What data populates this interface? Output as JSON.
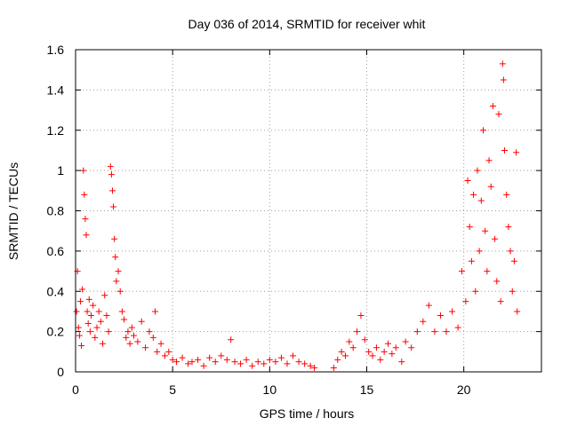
{
  "chart_data": {
    "type": "scatter",
    "title": "Day 036 of 2014, SRMTID for receiver whit",
    "xlabel": "GPS time / hours",
    "ylabel": "SRMTID / TECUs",
    "xlim": [
      0,
      24
    ],
    "ylim": [
      0,
      1.6
    ],
    "x_ticks": [
      0,
      5,
      10,
      15,
      20
    ],
    "x_tick_labels": [
      "0",
      "5",
      "10",
      "15",
      "20"
    ],
    "y_ticks": [
      0,
      0.2,
      0.4,
      0.6,
      0.8,
      1.0,
      1.2,
      1.4,
      1.6
    ],
    "y_tick_labels": [
      "0",
      "0.2",
      "0.4",
      "0.6",
      "0.8",
      "1",
      "1.2",
      "1.4",
      "1.6"
    ],
    "grid": true,
    "marker": "+",
    "series": [
      {
        "name": "SRMTID",
        "color": "#ff0000",
        "points": [
          [
            0.05,
            0.3
          ],
          [
            0.1,
            0.5
          ],
          [
            0.15,
            0.22
          ],
          [
            0.2,
            0.18
          ],
          [
            0.25,
            0.35
          ],
          [
            0.3,
            0.13
          ],
          [
            0.35,
            0.41
          ],
          [
            0.4,
            1.0
          ],
          [
            0.45,
            0.88
          ],
          [
            0.5,
            0.76
          ],
          [
            0.55,
            0.68
          ],
          [
            0.6,
            0.3
          ],
          [
            0.65,
            0.24
          ],
          [
            0.7,
            0.36
          ],
          [
            0.75,
            0.2
          ],
          [
            0.8,
            0.28
          ],
          [
            0.9,
            0.33
          ],
          [
            1.0,
            0.17
          ],
          [
            1.1,
            0.22
          ],
          [
            1.2,
            0.3
          ],
          [
            1.3,
            0.25
          ],
          [
            1.4,
            0.14
          ],
          [
            1.5,
            0.38
          ],
          [
            1.6,
            0.28
          ],
          [
            1.7,
            0.2
          ],
          [
            1.8,
            1.02
          ],
          [
            1.85,
            0.98
          ],
          [
            1.9,
            0.9
          ],
          [
            1.95,
            0.82
          ],
          [
            2.0,
            0.66
          ],
          [
            2.05,
            0.57
          ],
          [
            2.1,
            0.45
          ],
          [
            2.2,
            0.5
          ],
          [
            2.3,
            0.4
          ],
          [
            2.4,
            0.3
          ],
          [
            2.5,
            0.26
          ],
          [
            2.6,
            0.17
          ],
          [
            2.7,
            0.2
          ],
          [
            2.8,
            0.14
          ],
          [
            2.9,
            0.22
          ],
          [
            3.0,
            0.18
          ],
          [
            3.2,
            0.15
          ],
          [
            3.4,
            0.25
          ],
          [
            3.6,
            0.12
          ],
          [
            3.8,
            0.2
          ],
          [
            4.0,
            0.17
          ],
          [
            4.1,
            0.3
          ],
          [
            4.2,
            0.1
          ],
          [
            4.4,
            0.14
          ],
          [
            4.6,
            0.08
          ],
          [
            4.8,
            0.1
          ],
          [
            5.0,
            0.06
          ],
          [
            5.2,
            0.05
          ],
          [
            5.5,
            0.07
          ],
          [
            5.8,
            0.04
          ],
          [
            6.0,
            0.05
          ],
          [
            6.3,
            0.06
          ],
          [
            6.6,
            0.03
          ],
          [
            6.9,
            0.07
          ],
          [
            7.2,
            0.05
          ],
          [
            7.5,
            0.08
          ],
          [
            7.8,
            0.06
          ],
          [
            8.0,
            0.16
          ],
          [
            8.2,
            0.05
          ],
          [
            8.5,
            0.04
          ],
          [
            8.8,
            0.06
          ],
          [
            9.1,
            0.03
          ],
          [
            9.4,
            0.05
          ],
          [
            9.7,
            0.04
          ],
          [
            10.0,
            0.06
          ],
          [
            10.3,
            0.05
          ],
          [
            10.6,
            0.07
          ],
          [
            10.9,
            0.04
          ],
          [
            11.2,
            0.08
          ],
          [
            11.5,
            0.05
          ],
          [
            11.8,
            0.04
          ],
          [
            12.1,
            0.03
          ],
          [
            12.3,
            0.02
          ],
          [
            13.3,
            0.02
          ],
          [
            13.5,
            0.06
          ],
          [
            13.7,
            0.1
          ],
          [
            13.9,
            0.08
          ],
          [
            14.1,
            0.15
          ],
          [
            14.3,
            0.12
          ],
          [
            14.5,
            0.2
          ],
          [
            14.7,
            0.28
          ],
          [
            14.9,
            0.16
          ],
          [
            15.1,
            0.1
          ],
          [
            15.3,
            0.08
          ],
          [
            15.5,
            0.12
          ],
          [
            15.7,
            0.06
          ],
          [
            15.9,
            0.1
          ],
          [
            16.1,
            0.14
          ],
          [
            16.3,
            0.09
          ],
          [
            16.5,
            0.12
          ],
          [
            16.8,
            0.05
          ],
          [
            17.0,
            0.15
          ],
          [
            17.3,
            0.12
          ],
          [
            17.6,
            0.2
          ],
          [
            17.9,
            0.25
          ],
          [
            18.2,
            0.33
          ],
          [
            18.5,
            0.2
          ],
          [
            18.8,
            0.28
          ],
          [
            19.1,
            0.2
          ],
          [
            19.4,
            0.3
          ],
          [
            19.7,
            0.22
          ],
          [
            19.9,
            0.5
          ],
          [
            20.1,
            0.35
          ],
          [
            20.2,
            0.95
          ],
          [
            20.3,
            0.72
          ],
          [
            20.4,
            0.55
          ],
          [
            20.5,
            0.88
          ],
          [
            20.6,
            0.4
          ],
          [
            20.7,
            1.0
          ],
          [
            20.8,
            0.6
          ],
          [
            20.9,
            0.85
          ],
          [
            21.0,
            1.2
          ],
          [
            21.1,
            0.7
          ],
          [
            21.2,
            0.5
          ],
          [
            21.3,
            1.05
          ],
          [
            21.4,
            0.92
          ],
          [
            21.5,
            1.32
          ],
          [
            21.6,
            0.66
          ],
          [
            21.7,
            0.45
          ],
          [
            21.8,
            1.28
          ],
          [
            21.9,
            0.35
          ],
          [
            22.0,
            1.53
          ],
          [
            22.05,
            1.45
          ],
          [
            22.1,
            1.1
          ],
          [
            22.2,
            0.88
          ],
          [
            22.3,
            0.72
          ],
          [
            22.4,
            0.6
          ],
          [
            22.5,
            0.4
          ],
          [
            22.6,
            0.55
          ],
          [
            22.7,
            1.09
          ],
          [
            22.75,
            0.3
          ]
        ]
      }
    ]
  }
}
